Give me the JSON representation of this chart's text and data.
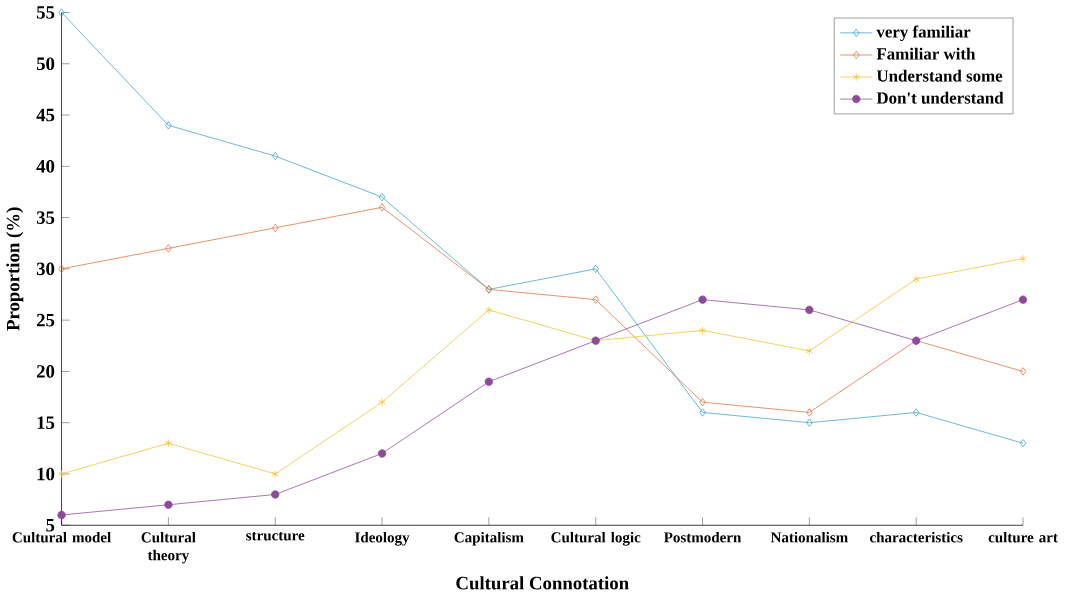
{
  "chart_data": {
    "type": "line",
    "xlabel": "Cultural Connotation",
    "ylabel": "Proportion (%)",
    "categories": [
      "Cultural model",
      "Cultural theory",
      "structure",
      "Ideology",
      "Capitalism",
      "Cultural logic",
      "Postmodern",
      "Nationalism",
      "characteristics",
      "culture art"
    ],
    "series": [
      {
        "name": "very familiar",
        "color": "#3ba3c9",
        "marker": "diamond",
        "values": [
          55,
          44,
          41,
          37,
          28,
          30,
          16,
          15,
          16,
          13
        ]
      },
      {
        "name": "Familiar with",
        "color": "#e0703c",
        "marker": "diamond",
        "values": [
          30,
          32,
          34,
          36,
          28,
          27,
          17,
          16,
          23,
          20
        ]
      },
      {
        "name": "Understand some",
        "color": "#f0c030",
        "marker": "cross",
        "values": [
          10,
          13,
          10,
          17,
          26,
          23,
          24,
          22,
          29,
          31
        ]
      },
      {
        "name": "Don't understand",
        "color": "#8e4a9a",
        "marker": "circle",
        "values": [
          6,
          7,
          8,
          12,
          19,
          23,
          27,
          26,
          23,
          27
        ]
      }
    ],
    "ylim": [
      5,
      55
    ],
    "yticks": [
      5,
      10,
      15,
      20,
      25,
      30,
      35,
      40,
      45,
      50,
      55
    ],
    "legend": "top right",
    "grid": false,
    "line_style": "solid"
  }
}
